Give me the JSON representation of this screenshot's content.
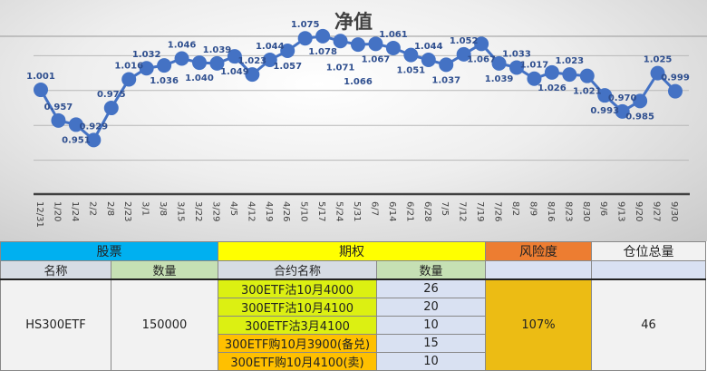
{
  "chart_data": {
    "type": "line",
    "title": "净值",
    "xlabel": "",
    "ylabel": "",
    "ylim": [
      0.85,
      1.1
    ],
    "grid": true,
    "colors": {
      "series": "#4472c4"
    },
    "categories": [
      "12/31",
      "1/20",
      "1/24",
      "2/2",
      "2/8",
      "2/23",
      "3/1",
      "3/8",
      "3/15",
      "3/22",
      "3/29",
      "4/5",
      "4/12",
      "4/19",
      "4/26",
      "5/10",
      "5/17",
      "5/24",
      "5/31",
      "6/7",
      "6/14",
      "6/21",
      "6/28",
      "7/5",
      "7/12",
      "7/19",
      "7/26",
      "8/2",
      "8/9",
      "8/16",
      "8/23",
      "8/30",
      "9/6",
      "9/13",
      "9/20",
      "9/27",
      "9/30"
    ],
    "values": [
      1.001,
      0.957,
      0.951,
      0.929,
      0.975,
      1.016,
      1.032,
      1.036,
      1.046,
      1.04,
      1.039,
      1.049,
      1.023,
      1.044,
      1.057,
      1.075,
      1.078,
      1.071,
      1.066,
      1.067,
      1.061,
      1.051,
      1.044,
      1.037,
      1.052,
      1.067,
      1.039,
      1.033,
      1.017,
      1.026,
      1.023,
      1.021,
      0.993,
      0.97,
      0.985,
      1.025,
      0.999
    ],
    "labels": [
      "1.001",
      "0.957",
      "0.951",
      "0.929",
      "0.975",
      "1.016",
      "1.032",
      "1.036",
      "1.046",
      "1.040",
      "1.039",
      "1.049",
      "1.023",
      "1.044",
      "1.057",
      "1.075",
      "1.078",
      "1.071",
      "1.066",
      "1.067",
      "1.061",
      "1.051",
      "1.044",
      "1.037",
      "1.052",
      "1.067",
      "1.039",
      "1.033",
      "1.017",
      "1.026",
      "1.023",
      "1.021",
      "0.993",
      "0.970",
      "0.985",
      "1.025",
      "0.999"
    ]
  },
  "table": {
    "groups": {
      "stock": "股票",
      "option": "期权",
      "risk": "风险度",
      "position": "仓位总量"
    },
    "headers": {
      "name": "名称",
      "qty": "数量",
      "contract": "合约名称",
      "opt_qty": "数量"
    },
    "stock": {
      "name": "HS300ETF",
      "qty": "150000"
    },
    "options": [
      {
        "name": "300ETF沽10月4000",
        "qty": "26"
      },
      {
        "name": "300ETF沽10月4100",
        "qty": "20"
      },
      {
        "name": "300ETF沽3月4100",
        "qty": "10"
      },
      {
        "name": "300ETF购10月3900(备兑)",
        "qty": "15"
      },
      {
        "name": "300ETF购10月4100(卖)",
        "qty": "10"
      }
    ],
    "risk": "107%",
    "position": "46"
  }
}
